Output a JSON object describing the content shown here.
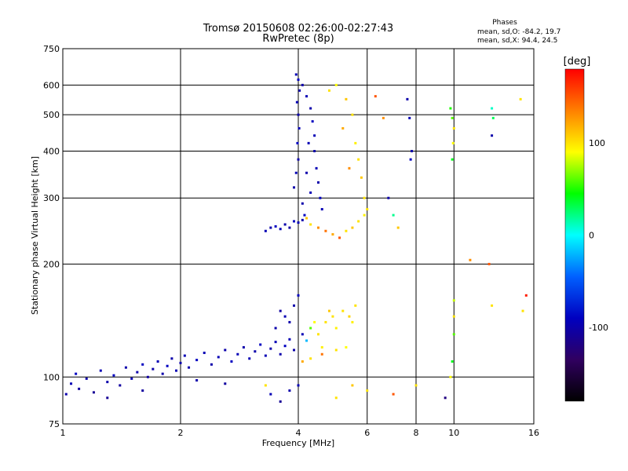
{
  "chart_data": {
    "type": "scatter",
    "title": "Tromsø 20150608 02:26:00-02:27:43",
    "subtitle": "RwPretec (8p)",
    "xlabel": "Frequency [MHz]",
    "ylabel": "Stationary phase Virtual Height [km]",
    "x_scale": "log",
    "y_scale": "log",
    "xlim": [
      1,
      16
    ],
    "ylim": [
      75,
      750
    ],
    "x_ticks": [
      1,
      2,
      4,
      6,
      8,
      10,
      16
    ],
    "y_ticks": [
      75,
      100,
      200,
      300,
      400,
      500,
      600,
      750
    ],
    "grid": true,
    "stats": {
      "heading": "Phases",
      "line_o": "mean, sd,O: -84.2, 19.7",
      "line_x": "mean, sd,X:  94.4, 24.5"
    },
    "colorbar": {
      "label": "[deg]",
      "range": [
        -180,
        180
      ],
      "ticks": [
        100,
        0,
        -100
      ],
      "colors": [
        "#ff0000",
        "#ff8000",
        "#ffff00",
        "#00ff00",
        "#00ffff",
        "#0060ff",
        "#0000c0",
        "#300060",
        "#000000"
      ]
    },
    "points": [
      [
        1.02,
        90,
        -100
      ],
      [
        1.05,
        96,
        -95
      ],
      [
        1.08,
        102,
        -90
      ],
      [
        1.1,
        93,
        -105
      ],
      [
        1.15,
        99,
        -100
      ],
      [
        1.2,
        91,
        -110
      ],
      [
        1.25,
        104,
        -95
      ],
      [
        1.3,
        97,
        -100
      ],
      [
        1.35,
        101,
        -90
      ],
      [
        1.4,
        95,
        -105
      ],
      [
        1.45,
        106,
        -100
      ],
      [
        1.5,
        99,
        -95
      ],
      [
        1.55,
        103,
        -100
      ],
      [
        1.6,
        108,
        -90
      ],
      [
        1.65,
        100,
        -105
      ],
      [
        1.7,
        105,
        -100
      ],
      [
        1.75,
        110,
        -95
      ],
      [
        1.8,
        102,
        -100
      ],
      [
        1.85,
        107,
        -90
      ],
      [
        1.9,
        112,
        -100
      ],
      [
        1.95,
        104,
        -95
      ],
      [
        2.0,
        109,
        -100
      ],
      [
        2.05,
        114,
        -95
      ],
      [
        2.1,
        106,
        -100
      ],
      [
        2.2,
        111,
        -90
      ],
      [
        2.3,
        116,
        -95
      ],
      [
        2.4,
        108,
        -100
      ],
      [
        2.5,
        113,
        -95
      ],
      [
        2.6,
        118,
        -100
      ],
      [
        2.7,
        110,
        -90
      ],
      [
        2.8,
        115,
        -95
      ],
      [
        2.9,
        120,
        -100
      ],
      [
        3.0,
        112,
        -95
      ],
      [
        3.1,
        117,
        -100
      ],
      [
        3.2,
        122,
        -90
      ],
      [
        3.3,
        114,
        -95
      ],
      [
        3.4,
        119,
        -100
      ],
      [
        3.5,
        124,
        -95
      ],
      [
        3.6,
        115,
        -100
      ],
      [
        3.7,
        121,
        -90
      ],
      [
        3.8,
        126,
        -95
      ],
      [
        3.9,
        118,
        -100
      ],
      [
        1.3,
        88,
        -110
      ],
      [
        1.6,
        92,
        -105
      ],
      [
        2.2,
        98,
        -100
      ],
      [
        2.6,
        96,
        -105
      ],
      [
        3.4,
        90,
        -95
      ],
      [
        3.6,
        86,
        -110
      ],
      [
        3.8,
        92,
        -100
      ],
      [
        4.0,
        95,
        -95
      ],
      [
        3.5,
        135,
        -100
      ],
      [
        3.7,
        145,
        -95
      ],
      [
        3.9,
        155,
        -100
      ],
      [
        4.0,
        165,
        -90
      ],
      [
        3.6,
        150,
        -105
      ],
      [
        3.8,
        140,
        -100
      ],
      [
        4.1,
        130,
        -95
      ],
      [
        4.2,
        125,
        -20
      ],
      [
        4.3,
        135,
        60
      ],
      [
        4.4,
        140,
        90
      ],
      [
        4.5,
        130,
        100
      ],
      [
        4.6,
        120,
        95
      ],
      [
        4.7,
        140,
        100
      ],
      [
        4.8,
        150,
        110
      ],
      [
        4.9,
        145,
        100
      ],
      [
        5.0,
        135,
        95
      ],
      [
        5.2,
        150,
        100
      ],
      [
        5.4,
        145,
        105
      ],
      [
        5.6,
        155,
        100
      ],
      [
        5.5,
        140,
        95
      ],
      [
        4.1,
        110,
        120
      ],
      [
        4.3,
        112,
        100
      ],
      [
        4.6,
        115,
        140
      ],
      [
        5.0,
        118,
        100
      ],
      [
        5.3,
        120,
        90
      ],
      [
        3.3,
        245,
        -95
      ],
      [
        3.4,
        250,
        -100
      ],
      [
        3.5,
        252,
        -90
      ],
      [
        3.6,
        248,
        -95
      ],
      [
        3.7,
        255,
        -100
      ],
      [
        3.8,
        250,
        -105
      ],
      [
        3.9,
        260,
        -90
      ],
      [
        4.0,
        258,
        -95
      ],
      [
        4.1,
        262,
        -100
      ],
      [
        4.2,
        265,
        110
      ],
      [
        4.3,
        255,
        100
      ],
      [
        4.5,
        250,
        130
      ],
      [
        4.7,
        245,
        140
      ],
      [
        4.9,
        240,
        120
      ],
      [
        5.1,
        235,
        150
      ],
      [
        5.3,
        245,
        100
      ],
      [
        5.5,
        250,
        110
      ],
      [
        5.7,
        260,
        100
      ],
      [
        5.9,
        270,
        95
      ],
      [
        6.0,
        280,
        100
      ],
      [
        3.9,
        320,
        -100
      ],
      [
        3.95,
        350,
        -95
      ],
      [
        4.0,
        380,
        -100
      ],
      [
        3.98,
        420,
        -90
      ],
      [
        4.02,
        460,
        -95
      ],
      [
        4.0,
        500,
        -100
      ],
      [
        3.97,
        540,
        -95
      ],
      [
        4.03,
        580,
        -100
      ],
      [
        4.0,
        620,
        -90
      ],
      [
        3.95,
        640,
        -95
      ],
      [
        4.1,
        600,
        -100
      ],
      [
        4.2,
        560,
        -95
      ],
      [
        4.3,
        520,
        -100
      ],
      [
        4.35,
        480,
        -90
      ],
      [
        4.4,
        440,
        -95
      ],
      [
        4.4,
        400,
        -100
      ],
      [
        4.45,
        360,
        -95
      ],
      [
        4.5,
        330,
        -100
      ],
      [
        4.55,
        300,
        -90
      ],
      [
        4.6,
        280,
        -95
      ],
      [
        4.2,
        350,
        -100
      ],
      [
        4.3,
        310,
        -95
      ],
      [
        4.1,
        290,
        -100
      ],
      [
        4.15,
        270,
        -90
      ],
      [
        4.25,
        420,
        -95
      ],
      [
        4.8,
        580,
        100
      ],
      [
        5.0,
        600,
        90
      ],
      [
        5.3,
        550,
        110
      ],
      [
        5.5,
        500,
        100
      ],
      [
        5.6,
        420,
        95
      ],
      [
        5.7,
        380,
        100
      ],
      [
        5.8,
        340,
        110
      ],
      [
        5.9,
        300,
        100
      ],
      [
        5.2,
        460,
        120
      ],
      [
        5.4,
        360,
        130
      ],
      [
        6.3,
        560,
        150
      ],
      [
        6.6,
        490,
        130
      ],
      [
        6.8,
        300,
        -100
      ],
      [
        7.0,
        270,
        20
      ],
      [
        7.2,
        250,
        110
      ],
      [
        7.6,
        550,
        -100
      ],
      [
        7.7,
        490,
        -95
      ],
      [
        7.8,
        400,
        -100
      ],
      [
        7.75,
        380,
        -90
      ],
      [
        9.8,
        520,
        50
      ],
      [
        9.9,
        490,
        60
      ],
      [
        10.0,
        460,
        100
      ],
      [
        9.95,
        420,
        90
      ],
      [
        9.9,
        380,
        40
      ],
      [
        12.5,
        520,
        10
      ],
      [
        12.6,
        490,
        30
      ],
      [
        12.5,
        440,
        -100
      ],
      [
        14.8,
        550,
        100
      ],
      [
        11.0,
        205,
        130
      ],
      [
        12.3,
        200,
        150
      ],
      [
        10.0,
        160,
        80
      ],
      [
        10.0,
        145,
        100
      ],
      [
        10.0,
        130,
        60
      ],
      [
        12.5,
        155,
        100
      ],
      [
        15.3,
        165,
        170
      ],
      [
        15.0,
        150,
        100
      ],
      [
        9.9,
        110,
        40
      ],
      [
        9.8,
        100,
        90
      ],
      [
        8.0,
        95,
        100
      ],
      [
        7.0,
        90,
        150
      ],
      [
        6.0,
        92,
        100
      ],
      [
        5.5,
        95,
        110
      ],
      [
        9.5,
        88,
        -120
      ],
      [
        5.0,
        88,
        100
      ],
      [
        3.3,
        95,
        100
      ]
    ]
  }
}
